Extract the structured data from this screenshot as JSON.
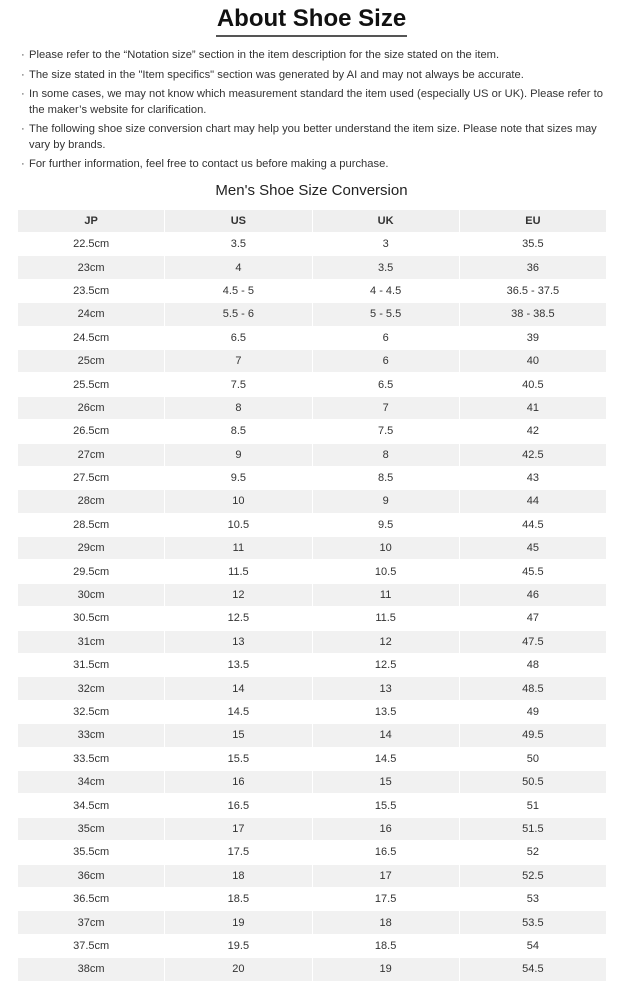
{
  "title": "About Shoe Size",
  "notes": [
    "Please refer to the “Notation size” section in the item description for the size stated on the item.",
    "The size stated in the \"Item specifics\" section was generated by AI and may not always be accurate.",
    "In some cases, we may not know which measurement standard the item used (especially US or UK). Please refer to the maker’s website for clarification.",
    "The following shoe size conversion chart may help you better understand the item size. Please note that sizes may vary by brands.",
    "For further information, feel free to contact us before making a purchase."
  ],
  "table": {
    "title": "Men's Shoe Size Conversion",
    "headers": [
      "JP",
      "US",
      "UK",
      "EU"
    ],
    "rows": [
      [
        "22.5cm",
        "3.5",
        "3",
        "35.5"
      ],
      [
        "23cm",
        "4",
        "3.5",
        "36"
      ],
      [
        "23.5cm",
        "4.5 - 5",
        "4 - 4.5",
        "36.5 - 37.5"
      ],
      [
        "24cm",
        "5.5 - 6",
        "5 - 5.5",
        "38 - 38.5"
      ],
      [
        "24.5cm",
        "6.5",
        "6",
        "39"
      ],
      [
        "25cm",
        "7",
        "6",
        "40"
      ],
      [
        "25.5cm",
        "7.5",
        "6.5",
        "40.5"
      ],
      [
        "26cm",
        "8",
        "7",
        "41"
      ],
      [
        "26.5cm",
        "8.5",
        "7.5",
        "42"
      ],
      [
        "27cm",
        "9",
        "8",
        "42.5"
      ],
      [
        "27.5cm",
        "9.5",
        "8.5",
        "43"
      ],
      [
        "28cm",
        "10",
        "9",
        "44"
      ],
      [
        "28.5cm",
        "10.5",
        "9.5",
        "44.5"
      ],
      [
        "29cm",
        "11",
        "10",
        "45"
      ],
      [
        "29.5cm",
        "11.5",
        "10.5",
        "45.5"
      ],
      [
        "30cm",
        "12",
        "11",
        "46"
      ],
      [
        "30.5cm",
        "12.5",
        "11.5",
        "47"
      ],
      [
        "31cm",
        "13",
        "12",
        "47.5"
      ],
      [
        "31.5cm",
        "13.5",
        "12.5",
        "48"
      ],
      [
        "32cm",
        "14",
        "13",
        "48.5"
      ],
      [
        "32.5cm",
        "14.5",
        "13.5",
        "49"
      ],
      [
        "33cm",
        "15",
        "14",
        "49.5"
      ],
      [
        "33.5cm",
        "15.5",
        "14.5",
        "50"
      ],
      [
        "34cm",
        "16",
        "15",
        "50.5"
      ],
      [
        "34.5cm",
        "16.5",
        "15.5",
        "51"
      ],
      [
        "35cm",
        "17",
        "16",
        "51.5"
      ],
      [
        "35.5cm",
        "17.5",
        "16.5",
        "52"
      ],
      [
        "36cm",
        "18",
        "17",
        "52.5"
      ],
      [
        "36.5cm",
        "18.5",
        "17.5",
        "53"
      ],
      [
        "37cm",
        "19",
        "18",
        "53.5"
      ],
      [
        "37.5cm",
        "19.5",
        "18.5",
        "54"
      ],
      [
        "38cm",
        "20",
        "19",
        "54.5"
      ]
    ]
  }
}
